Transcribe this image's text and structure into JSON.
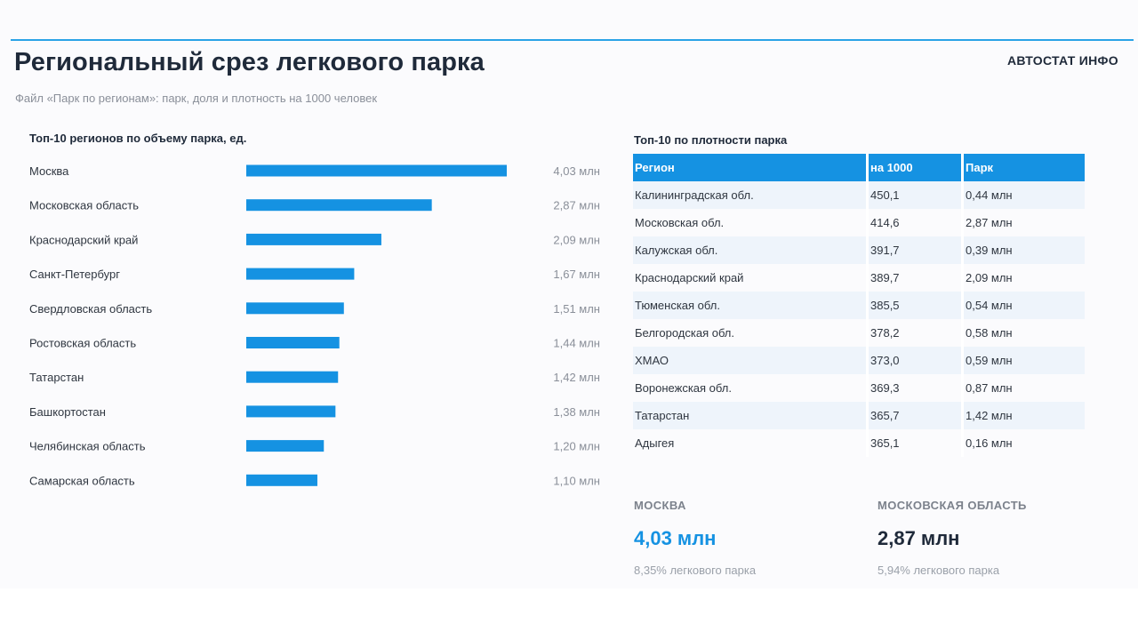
{
  "header": {
    "title": "Региональный срез легкового парка",
    "subtitle": "Файл «Парк по регионам»: парк, доля и плотность на 1000 человек",
    "brand": "АВТОСТАТ ИНФО"
  },
  "colors": {
    "accent": "#1592e2",
    "rule": "#2aa3e6",
    "row_alt": "#eef4fb"
  },
  "chart_data": {
    "type": "bar",
    "orientation": "horizontal",
    "title": "Топ-10 регионов по объему парка, ед.",
    "categories": [
      "Москва",
      "Московская область",
      "Краснодарский край",
      "Санкт-Петербург",
      "Свердловская область",
      "Ростовская область",
      "Татарстан",
      "Башкортостан",
      "Челябинская область",
      "Самарская область"
    ],
    "values": [
      4.03,
      2.87,
      2.09,
      1.67,
      1.51,
      1.44,
      1.42,
      1.38,
      1.2,
      1.1
    ],
    "value_labels": [
      "4,03 млн",
      "2,87 млн",
      "2,09 млн",
      "1,67 млн",
      "1,51 млн",
      "1,44 млн",
      "1,42 млн",
      "1,38 млн",
      "1,20 млн",
      "1,10 млн"
    ],
    "unit": "млн",
    "xlim": [
      0,
      4.03
    ],
    "grid": false,
    "legend": "none"
  },
  "density_table": {
    "title": "Топ-10 по плотности парка",
    "columns": [
      "Регион",
      "на 1000",
      "Парк"
    ],
    "rows": [
      [
        "Калининградская обл.",
        "450,1",
        "0,44 млн"
      ],
      [
        "Московская обл.",
        "414,6",
        "2,87 млн"
      ],
      [
        "Калужская обл.",
        "391,7",
        "0,39 млн"
      ],
      [
        "Краснодарский край",
        "389,7",
        "2,09 млн"
      ],
      [
        "Тюменская обл.",
        "385,5",
        "0,54 млн"
      ],
      [
        "Белгородская обл.",
        "378,2",
        "0,58 млн"
      ],
      [
        "ХМАО",
        "373,0",
        "0,59 млн"
      ],
      [
        "Воронежская обл.",
        "369,3",
        "0,87 млн"
      ],
      [
        "Татарстан",
        "365,7",
        "1,42 млн"
      ],
      [
        "Адыгея",
        "365,1",
        "0,16 млн"
      ]
    ]
  },
  "kpis": [
    {
      "label": "МОСКВА",
      "value": "4,03 млн",
      "note": "8,35% легкового парка",
      "color": "#1592e2"
    },
    {
      "label": "МОСКОВСКАЯ ОБЛАСТЬ",
      "value": "2,87 млн",
      "note": "5,94% легкового парка",
      "color": "#1f2a3a"
    }
  ]
}
